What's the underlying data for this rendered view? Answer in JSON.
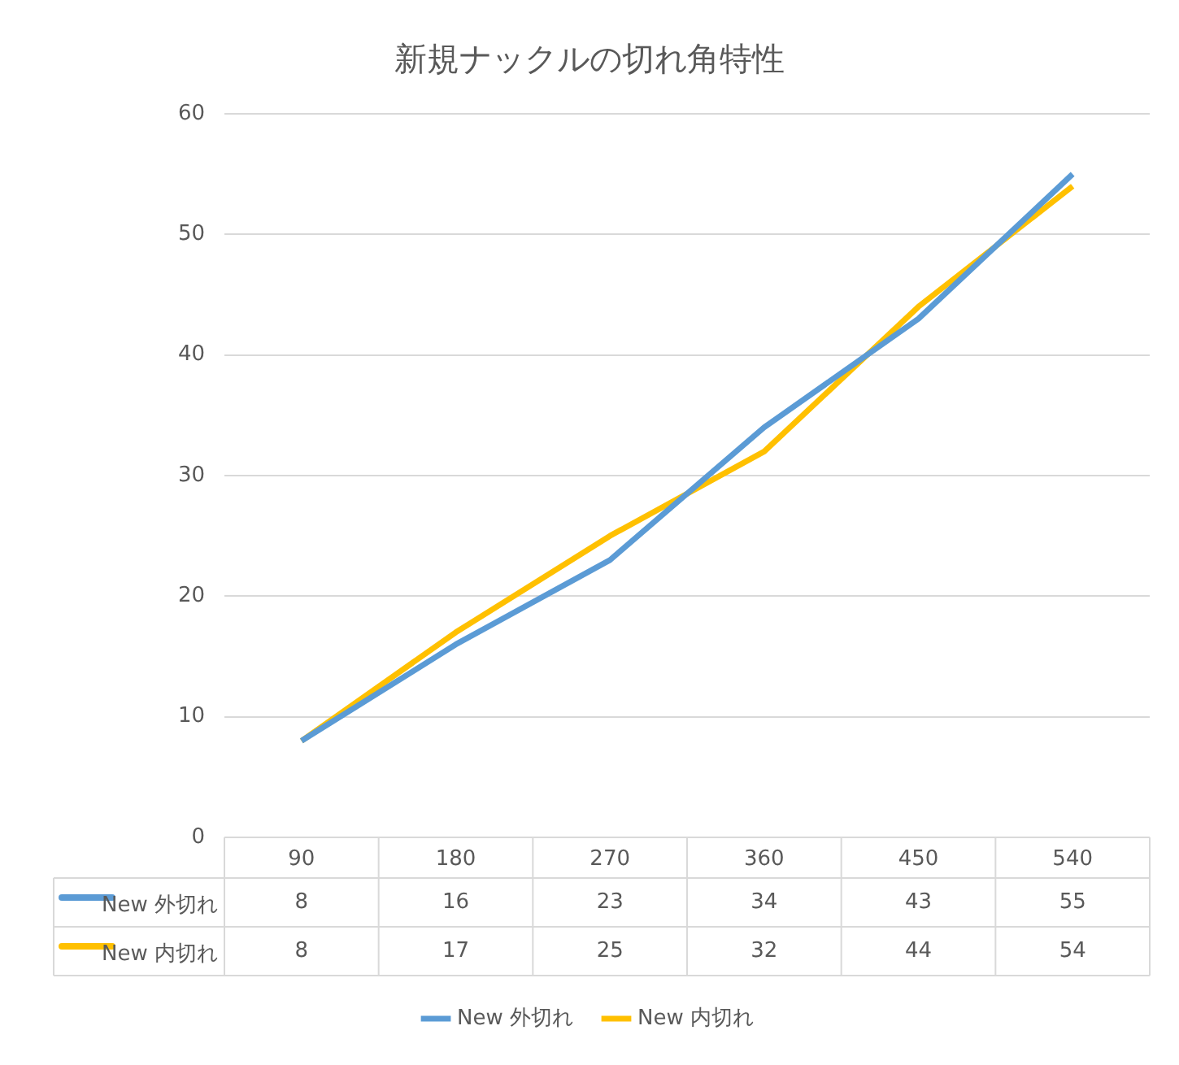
{
  "chart_data": {
    "type": "line",
    "title": "新規ナックルの切れ角特性",
    "categories": [
      "90",
      "180",
      "270",
      "360",
      "450",
      "540"
    ],
    "series": [
      {
        "name": "New 外切れ",
        "color": "#5b9bd5",
        "values": [
          8,
          16,
          23,
          34,
          43,
          55
        ]
      },
      {
        "name": "New 内切れ",
        "color": "#ffc000",
        "values": [
          8,
          17,
          25,
          32,
          44,
          54
        ]
      }
    ],
    "ylim": [
      0,
      60
    ],
    "yticks": [
      0,
      10,
      20,
      30,
      40,
      50,
      60
    ],
    "grid": "y",
    "legend": "bottom",
    "marker": "none",
    "line_style": "solid",
    "data_labels": true
  }
}
